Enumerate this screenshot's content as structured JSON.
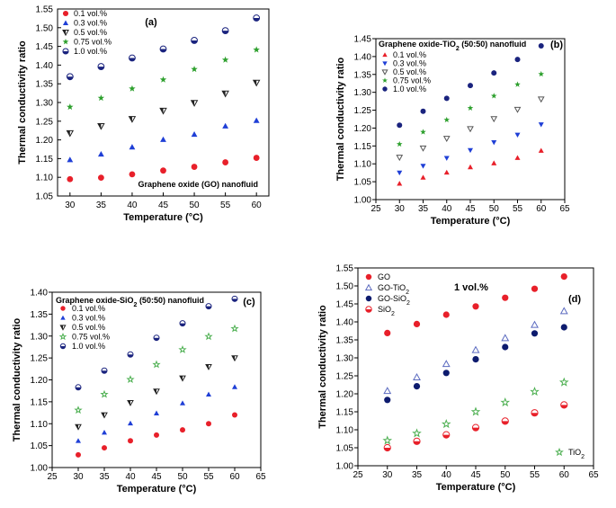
{
  "chart_data": [
    {
      "type": "scatter",
      "panel_label": "(a)",
      "annotation": "Graphene oxide (GO) nanofluid",
      "xlabel": "Temperature (°C)",
      "ylabel": "Thermal conductivity ratio",
      "xlim": [
        28,
        62
      ],
      "ylim": [
        1.05,
        1.55
      ],
      "xticks": [
        "30",
        "35",
        "40",
        "45",
        "50",
        "55",
        "60"
      ],
      "yticks": [
        "1.05",
        "1.10",
        "1.15",
        "1.20",
        "1.25",
        "1.30",
        "1.35",
        "1.40",
        "1.45",
        "1.50",
        "1.55"
      ],
      "legend_position": "top-left",
      "x": [
        30,
        35,
        40,
        45,
        50,
        55,
        60
      ],
      "series": [
        {
          "name": "0.1 vol.%",
          "marker": "circle",
          "color": "#e8202a",
          "values": [
            1.095,
            1.099,
            1.108,
            1.118,
            1.128,
            1.14,
            1.152
          ]
        },
        {
          "name": "0.3 vol.%",
          "marker": "triangle-up",
          "color": "#1f3fd6",
          "values": [
            1.147,
            1.162,
            1.181,
            1.201,
            1.215,
            1.237,
            1.252
          ]
        },
        {
          "name": "0.5 vol.%",
          "marker": "triangle-down-half",
          "color": "#222222",
          "values": [
            1.218,
            1.237,
            1.256,
            1.278,
            1.299,
            1.324,
            1.353
          ]
        },
        {
          "name": "0.75 vol.%",
          "marker": "star",
          "color": "#2ea02e",
          "values": [
            1.288,
            1.312,
            1.337,
            1.361,
            1.389,
            1.414,
            1.441
          ]
        },
        {
          "name": "1.0 vol.%",
          "marker": "circle-half",
          "color": "#1a237e",
          "values": [
            1.369,
            1.396,
            1.419,
            1.443,
            1.466,
            1.492,
            1.526
          ]
        }
      ]
    },
    {
      "type": "scatter",
      "panel_label": "(b)",
      "annotation_main": "Graphene oxide-TiO",
      "annotation_sub": "2",
      "annotation_tail": " (50:50) nanofluid",
      "xlabel": "Temperature (°C)",
      "ylabel": "Thermal conductivity ratio",
      "xlim": [
        25,
        65
      ],
      "ylim": [
        1.0,
        1.45
      ],
      "xticks": [
        "25",
        "30",
        "35",
        "40",
        "45",
        "50",
        "55",
        "60",
        "65"
      ],
      "yticks": [
        "1.00",
        "1.05",
        "1.10",
        "1.15",
        "1.20",
        "1.25",
        "1.30",
        "1.35",
        "1.40",
        "1.45"
      ],
      "legend_position": "top-left",
      "x": [
        30,
        35,
        40,
        45,
        50,
        55,
        60
      ],
      "series": [
        {
          "name": "0.1 vol.%",
          "marker": "triangle-up",
          "color": "#e8202a",
          "values": [
            1.045,
            1.062,
            1.076,
            1.091,
            1.102,
            1.117,
            1.137
          ]
        },
        {
          "name": "0.3 vol.%",
          "marker": "triangle-down",
          "color": "#1f3fd6",
          "values": [
            1.075,
            1.094,
            1.116,
            1.138,
            1.16,
            1.181,
            1.21
          ]
        },
        {
          "name": "0.5 vol.%",
          "marker": "triangle-down-open",
          "color": "#555555",
          "values": [
            1.118,
            1.144,
            1.171,
            1.198,
            1.226,
            1.252,
            1.281
          ]
        },
        {
          "name": "0.75 vol.%",
          "marker": "star",
          "color": "#2ea02e",
          "values": [
            1.155,
            1.189,
            1.223,
            1.256,
            1.29,
            1.322,
            1.351
          ]
        },
        {
          "name": "1.0 vol.%",
          "marker": "circle",
          "color": "#1a237e",
          "values": [
            1.208,
            1.247,
            1.283,
            1.319,
            1.354,
            1.392,
            1.43
          ]
        }
      ]
    },
    {
      "type": "scatter",
      "panel_label": "(c)",
      "annotation_main": "Graphene oxide-SiO",
      "annotation_sub": "2",
      "annotation_tail": " (50:50) nanofluid",
      "xlabel": "Temperature (°C)",
      "ylabel": "Thermal conductivity ratio",
      "xlim": [
        25,
        65
      ],
      "ylim": [
        1.0,
        1.4
      ],
      "xticks": [
        "25",
        "30",
        "35",
        "40",
        "45",
        "50",
        "55",
        "60",
        "65"
      ],
      "yticks": [
        "1.00",
        "1.05",
        "1.10",
        "1.15",
        "1.20",
        "1.25",
        "1.30",
        "1.35",
        "1.40"
      ],
      "legend_position": "top-left",
      "x": [
        30,
        35,
        40,
        45,
        50,
        55,
        60
      ],
      "series": [
        {
          "name": "0.1 vol.%",
          "marker": "circle",
          "color": "#e8202a",
          "values": [
            1.029,
            1.045,
            1.061,
            1.074,
            1.086,
            1.1,
            1.12
          ]
        },
        {
          "name": "0.3 vol.%",
          "marker": "triangle-up",
          "color": "#1f3fd6",
          "values": [
            1.061,
            1.08,
            1.101,
            1.124,
            1.147,
            1.167,
            1.184
          ]
        },
        {
          "name": "0.5 vol.%",
          "marker": "triangle-down-half",
          "color": "#222222",
          "values": [
            1.093,
            1.12,
            1.148,
            1.174,
            1.204,
            1.23,
            1.25
          ]
        },
        {
          "name": "0.75 vol.%",
          "marker": "star-open",
          "color": "#4caf50",
          "values": [
            1.131,
            1.167,
            1.201,
            1.235,
            1.269,
            1.299,
            1.317
          ]
        },
        {
          "name": "1.0 vol.%",
          "marker": "circle-half",
          "color": "#1a237e",
          "values": [
            1.183,
            1.221,
            1.258,
            1.296,
            1.329,
            1.368,
            1.385
          ]
        }
      ]
    },
    {
      "type": "scatter",
      "panel_label": "(d)",
      "annotation": "1 vol.%",
      "xlabel": "Temperature (°C)",
      "ylabel": "Thermal conductivity ratio",
      "xlim": [
        25,
        65
      ],
      "ylim": [
        1.0,
        1.55
      ],
      "xticks": [
        "25",
        "30",
        "35",
        "40",
        "45",
        "50",
        "55",
        "60",
        "65"
      ],
      "yticks": [
        "1.00",
        "1.05",
        "1.10",
        "1.15",
        "1.20",
        "1.25",
        "1.30",
        "1.35",
        "1.40",
        "1.45",
        "1.50",
        "1.55"
      ],
      "legend_position": "top-left",
      "x": [
        30,
        35,
        40,
        45,
        50,
        55,
        60
      ],
      "series": [
        {
          "name": "GO",
          "sub": "",
          "marker": "circle",
          "color": "#e8202a",
          "values": [
            1.369,
            1.394,
            1.42,
            1.443,
            1.467,
            1.492,
            1.526
          ]
        },
        {
          "name": "GO-TiO",
          "sub": "2",
          "marker": "triangle-up-open",
          "color": "#5c6bc0",
          "values": [
            1.208,
            1.246,
            1.283,
            1.322,
            1.355,
            1.392,
            1.43
          ]
        },
        {
          "name": "GO-SiO",
          "sub": "2",
          "marker": "circle",
          "color": "#0d1b6e",
          "values": [
            1.183,
            1.221,
            1.258,
            1.296,
            1.33,
            1.368,
            1.385
          ]
        },
        {
          "name": "SiO",
          "sub": "2",
          "marker": "circle-half",
          "color": "#e8202a",
          "values": [
            1.05,
            1.068,
            1.086,
            1.106,
            1.124,
            1.147,
            1.169
          ]
        },
        {
          "name": "TiO",
          "sub": "2",
          "marker": "star-open",
          "color": "#4caf50",
          "values": [
            1.07,
            1.09,
            1.116,
            1.15,
            1.176,
            1.206,
            1.232
          ]
        }
      ]
    }
  ]
}
